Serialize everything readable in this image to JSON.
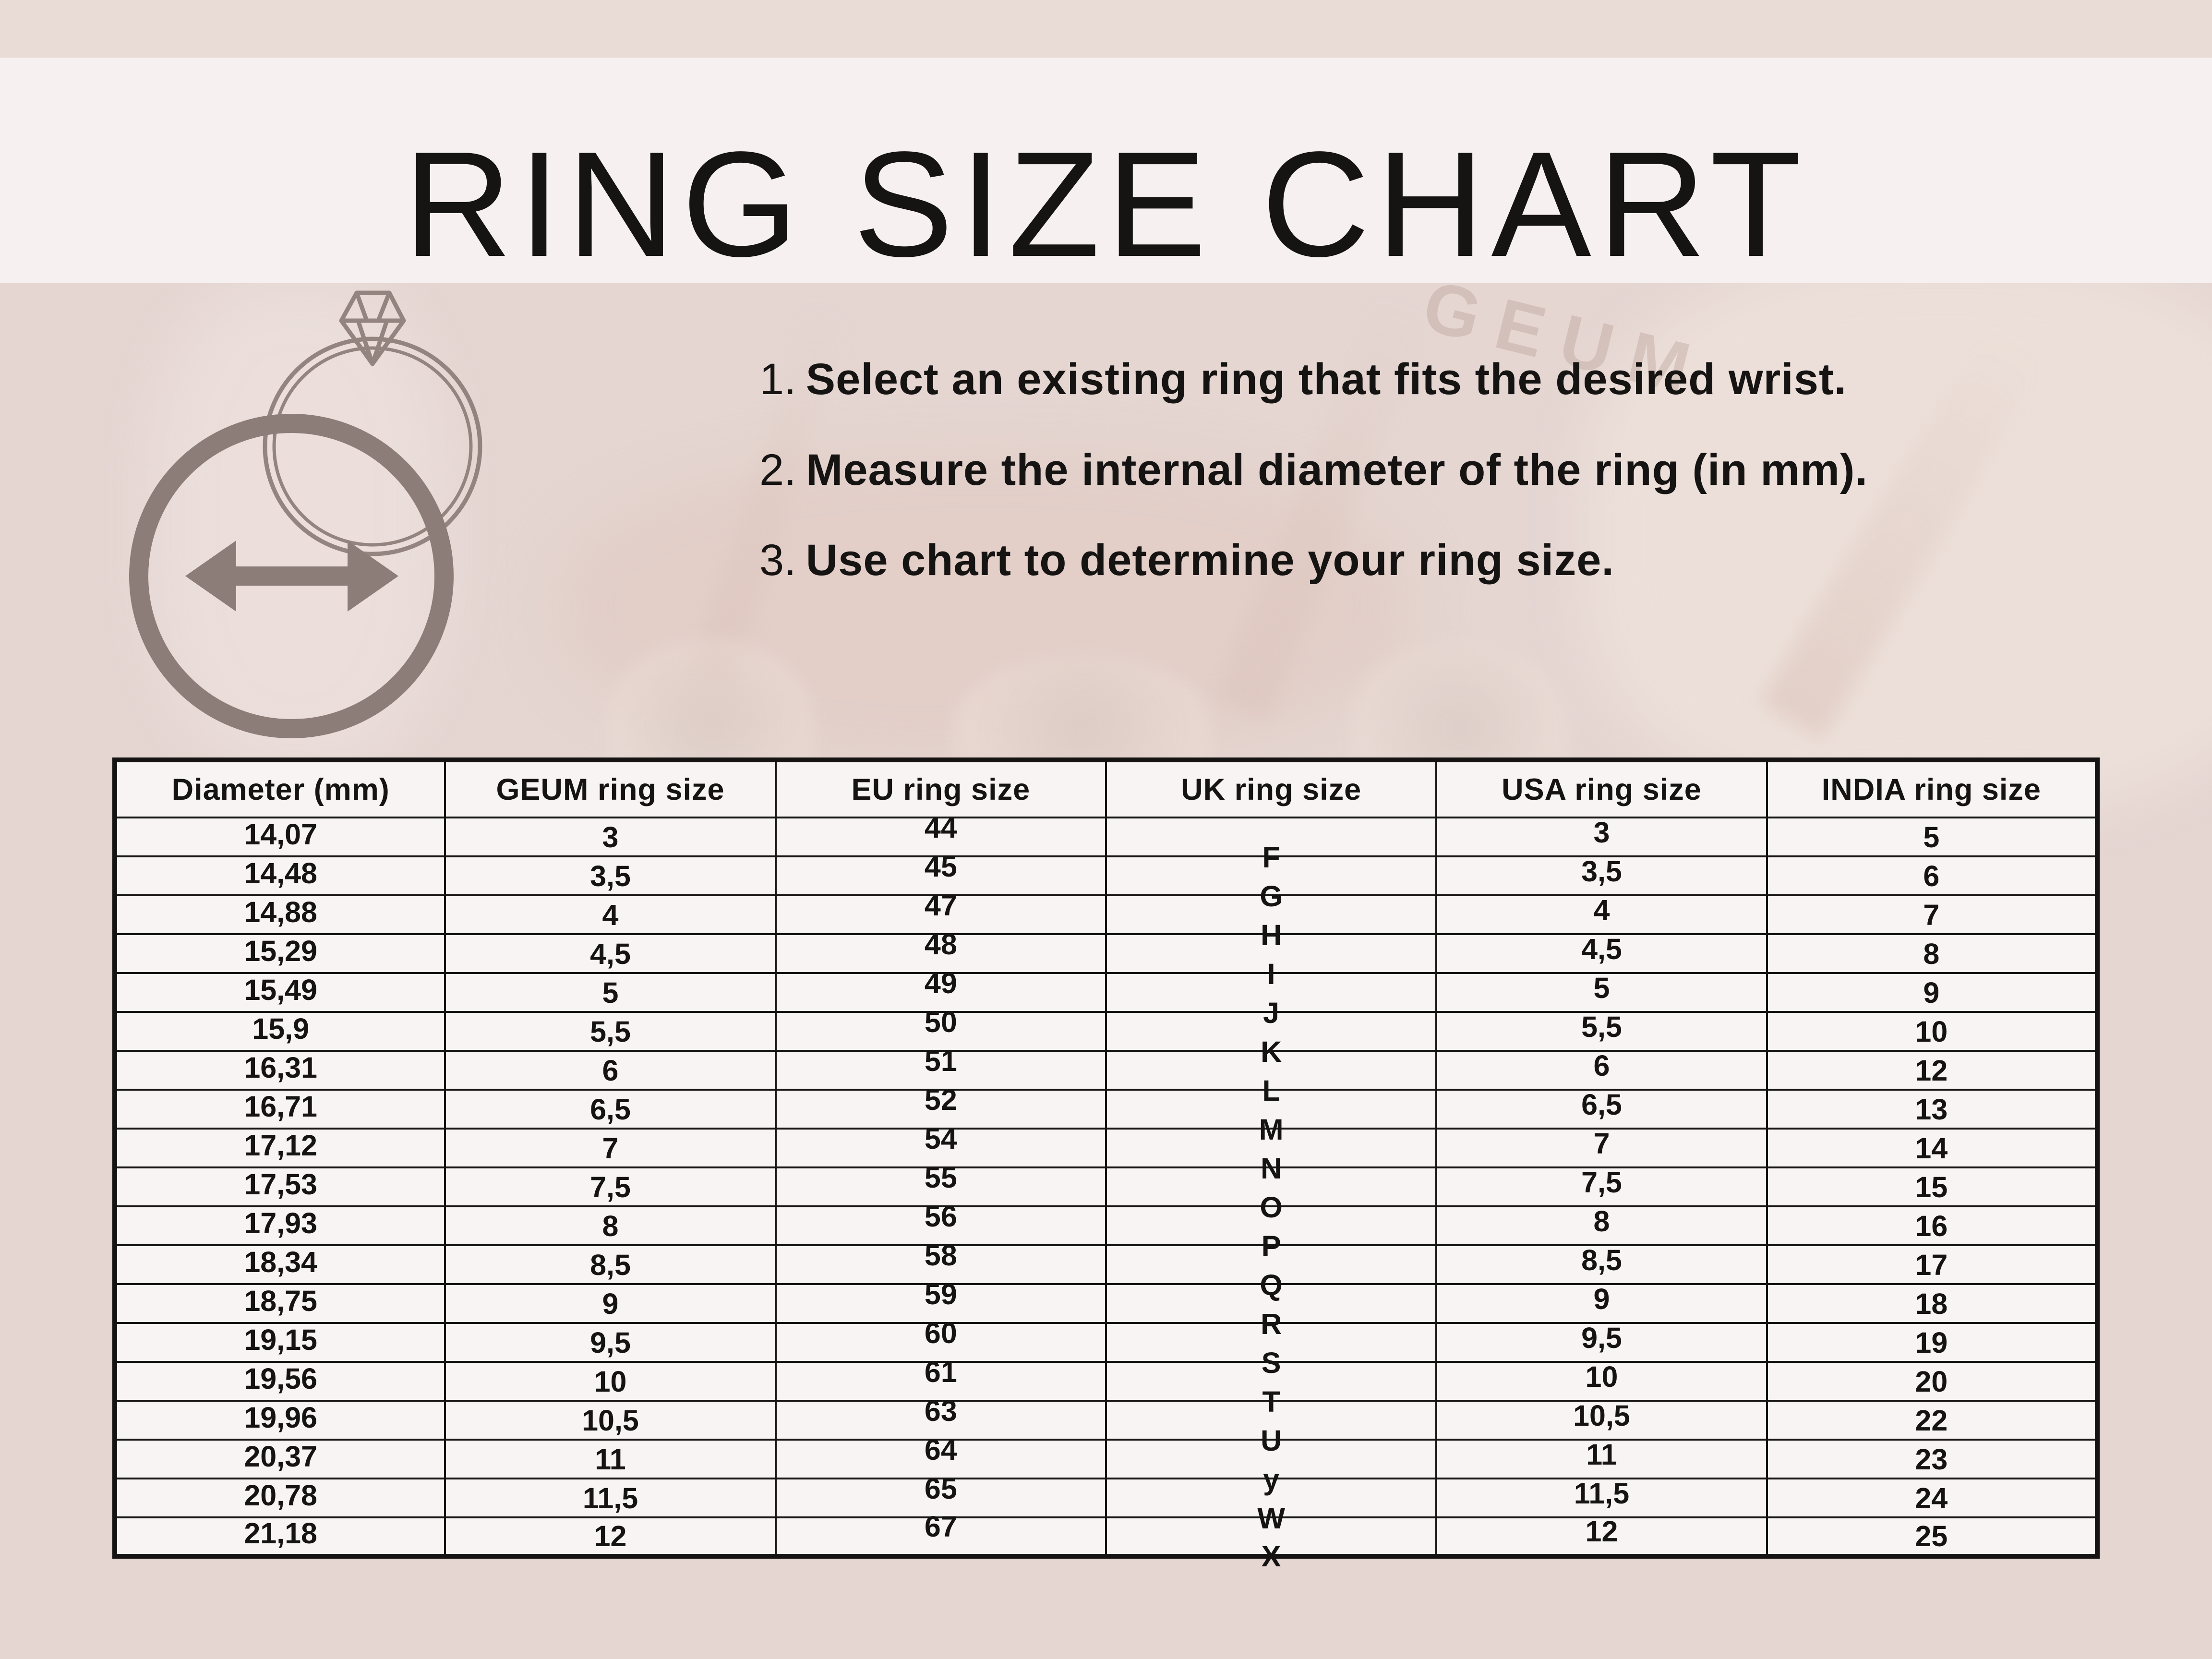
{
  "page": {
    "title": "RING SIZE CHART"
  },
  "brand_watermark": "GEUM",
  "instructions": [
    {
      "num": "1.",
      "text": "Select an existing ring that fits the desired wrist."
    },
    {
      "num": "2.",
      "text": "Measure the internal diameter of the ring (in mm)."
    },
    {
      "num": "3.",
      "text": "Use chart to determine your ring size."
    }
  ],
  "icons": [
    {
      "name": "diamond-ring-icon",
      "meaning": "outline of a ring with a diamond"
    },
    {
      "name": "diameter-arrow-icon",
      "meaning": "circle with double-headed arrow showing internal diameter"
    }
  ],
  "colors": {
    "page-bg": "#e5d6d2",
    "top-strip": "#e9dcd7",
    "title-band": "#f6f1f0",
    "table-bg": "#f8f4f3",
    "table-border": "#151413",
    "text": "#151413",
    "icon": "#8c7d78",
    "watermark": "#b99f97"
  },
  "table": {
    "headers": [
      "Diameter  (mm)",
      "GEUM ring size",
      "EU ring size",
      "UK ring size",
      "USA ring size",
      "INDIA ring size"
    ],
    "rows": [
      [
        "14,07",
        "3",
        "44",
        "F",
        "3",
        "5"
      ],
      [
        "14,48",
        "3,5",
        "45",
        "G",
        "3,5",
        "6"
      ],
      [
        "14,88",
        "4",
        "47",
        "H",
        "4",
        "7"
      ],
      [
        "15,29",
        "4,5",
        "48",
        "I",
        "4,5",
        "8"
      ],
      [
        "15,49",
        "5",
        "49",
        "J",
        "5",
        "9"
      ],
      [
        "15,9",
        "5,5",
        "50",
        "K",
        "5,5",
        "10"
      ],
      [
        "16,31",
        "6",
        "51",
        "L",
        "6",
        "12"
      ],
      [
        "16,71",
        "6,5",
        "52",
        "M",
        "6,5",
        "13"
      ],
      [
        "17,12",
        "7",
        "54",
        "N",
        "7",
        "14"
      ],
      [
        "17,53",
        "7,5",
        "55",
        "O",
        "7,5",
        "15"
      ],
      [
        "17,93",
        "8",
        "56",
        "P",
        "8",
        "16"
      ],
      [
        "18,34",
        "8,5",
        "58",
        "Q",
        "8,5",
        "17"
      ],
      [
        "18,75",
        "9",
        "59",
        "R",
        "9",
        "18"
      ],
      [
        "19,15",
        "9,5",
        "60",
        "S",
        "9,5",
        "19"
      ],
      [
        "19,56",
        "10",
        "61",
        "T",
        "10",
        "20"
      ],
      [
        "19,96",
        "10,5",
        "63",
        "U",
        "10,5",
        "22"
      ],
      [
        "20,37",
        "11",
        "64",
        "y",
        "11",
        "23"
      ],
      [
        "20,78",
        "11,5",
        "65",
        "W",
        "11,5",
        "24"
      ],
      [
        "21,18",
        "12",
        "67",
        "X",
        "12",
        "25"
      ]
    ]
  }
}
